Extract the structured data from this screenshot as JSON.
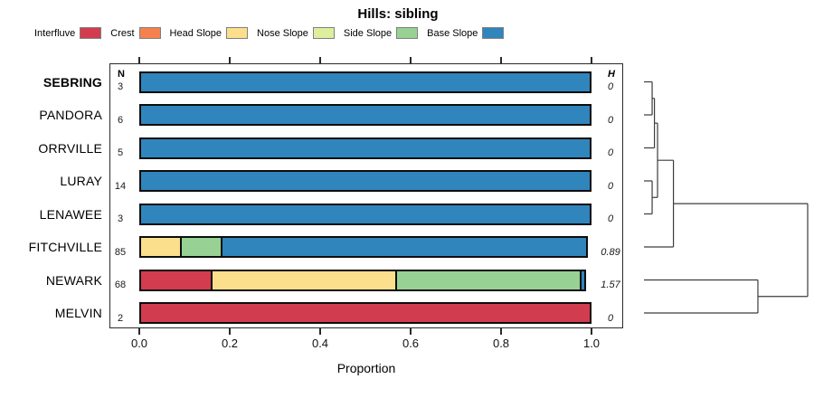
{
  "title": "Hills: sibling",
  "columns": {
    "n_header": "N",
    "h_header": "H"
  },
  "legend": [
    {
      "label": "Interfluve",
      "color": "#d23c4f"
    },
    {
      "label": "Crest",
      "color": "#f5824e"
    },
    {
      "label": "Head Slope",
      "color": "#fcdf8d"
    },
    {
      "label": "Nose Slope",
      "color": "#ddee9e"
    },
    {
      "label": "Side Slope",
      "color": "#97d294"
    },
    {
      "label": "Base Slope",
      "color": "#3185bd"
    }
  ],
  "chart_data": {
    "type": "bar",
    "orientation": "horizontal-stacked",
    "title": "Hills: sibling",
    "xlabel": "Proportion",
    "xlim": [
      0,
      1
    ],
    "x_tick_values": [
      0.0,
      0.2,
      0.4,
      0.6,
      0.8,
      1.0
    ],
    "x_tick_labels": [
      "0.0",
      "0.2",
      "0.4",
      "0.6",
      "0.8",
      "1.0"
    ],
    "legend_position": "top",
    "grid": false,
    "categories": [
      "Interfluve",
      "Crest",
      "Head Slope",
      "Nose Slope",
      "Side Slope",
      "Base Slope"
    ],
    "category_colors": {
      "Interfluve": "#d23c4f",
      "Crest": "#f5824e",
      "Head Slope": "#fcdf8d",
      "Nose Slope": "#ddee9e",
      "Side Slope": "#97d294",
      "Base Slope": "#3185bd"
    },
    "rows": [
      {
        "label": "SEBRING",
        "bold": true,
        "n": "3",
        "h": "0",
        "segments": [
          {
            "category": "Base Slope",
            "value": 1.0
          }
        ]
      },
      {
        "label": "PANDORA",
        "bold": false,
        "n": "6",
        "h": "0",
        "segments": [
          {
            "category": "Base Slope",
            "value": 1.0
          }
        ]
      },
      {
        "label": "ORRVILLE",
        "bold": false,
        "n": "5",
        "h": "0",
        "segments": [
          {
            "category": "Base Slope",
            "value": 1.0
          }
        ]
      },
      {
        "label": "LURAY",
        "bold": false,
        "n": "14",
        "h": "0",
        "segments": [
          {
            "category": "Base Slope",
            "value": 1.0
          }
        ]
      },
      {
        "label": "LENAWEE",
        "bold": false,
        "n": "3",
        "h": "0",
        "segments": [
          {
            "category": "Base Slope",
            "value": 1.0
          }
        ]
      },
      {
        "label": "FITCHVILLE",
        "bold": false,
        "n": "85",
        "h": "0.89",
        "segments": [
          {
            "category": "Head Slope",
            "value": 0.094
          },
          {
            "category": "Side Slope",
            "value": 0.094
          },
          {
            "category": "Base Slope",
            "value": 0.812
          }
        ]
      },
      {
        "label": "NEWARK",
        "bold": false,
        "n": "68",
        "h": "1.57",
        "segments": [
          {
            "category": "Interfluve",
            "value": 0.162
          },
          {
            "category": "Head Slope",
            "value": 0.412
          },
          {
            "category": "Side Slope",
            "value": 0.412
          },
          {
            "category": "Base Slope",
            "value": 0.014
          }
        ]
      },
      {
        "label": "MELVIN",
        "bold": false,
        "n": "2",
        "h": "0",
        "segments": [
          {
            "category": "Interfluve",
            "value": 1.0
          }
        ]
      }
    ],
    "dendrogram": {
      "side": "right",
      "merges": [
        {
          "id": "m1",
          "children": [
            "SEBRING",
            "PANDORA"
          ],
          "height": 0.05
        },
        {
          "id": "m2",
          "children": [
            "m1",
            "ORRVILLE"
          ],
          "height": 0.064
        },
        {
          "id": "m3",
          "children": [
            "LURAY",
            "LENAWEE"
          ],
          "height": 0.05
        },
        {
          "id": "m4",
          "children": [
            "m2",
            "m3"
          ],
          "height": 0.083
        },
        {
          "id": "m5",
          "children": [
            "m4",
            "FITCHVILLE"
          ],
          "height": 0.18
        },
        {
          "id": "m6",
          "children": [
            "NEWARK",
            "MELVIN"
          ],
          "height": 0.696
        },
        {
          "id": "m7",
          "children": [
            "m5",
            "m6"
          ],
          "height": 1.0
        }
      ]
    }
  }
}
